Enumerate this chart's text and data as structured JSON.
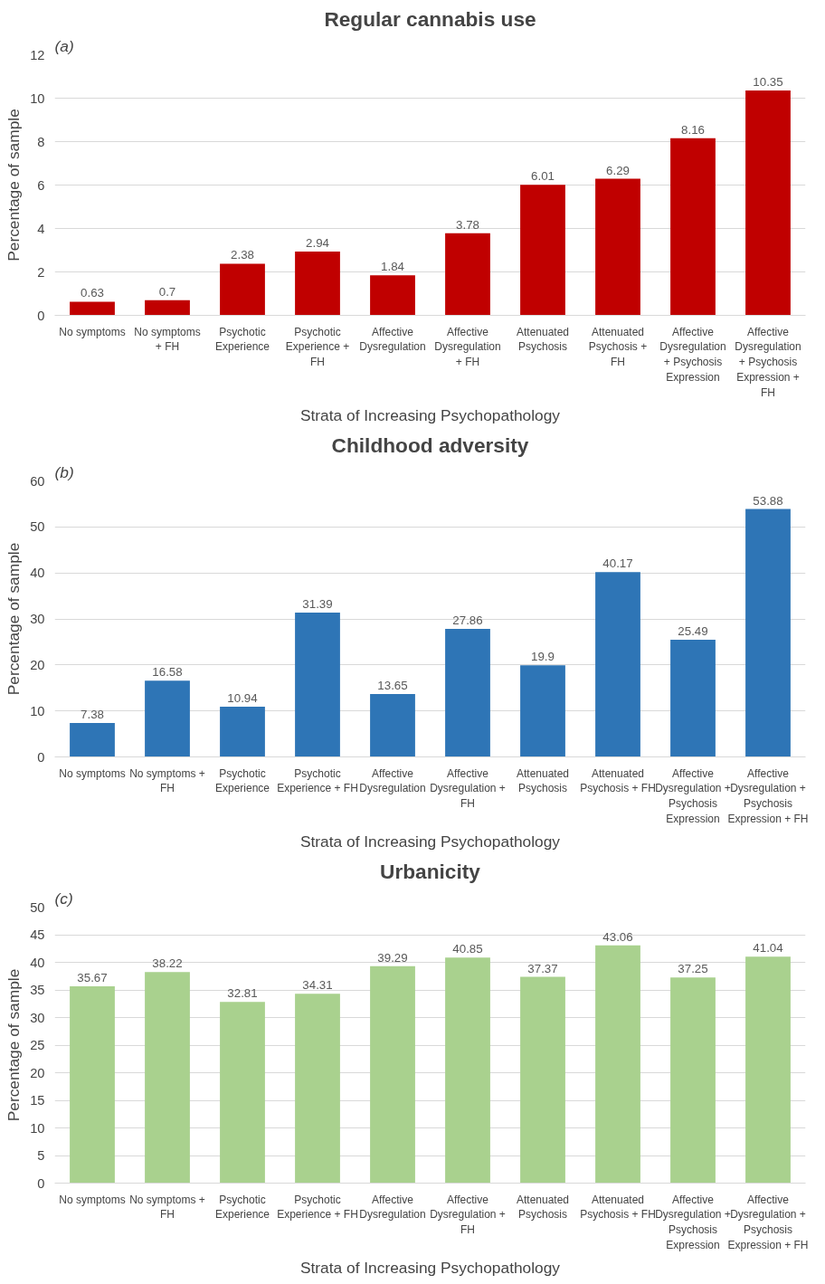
{
  "chart_data": [
    {
      "type": "bar",
      "title": "Regular cannabis use",
      "xlabel": "Strata of Increasing Psychopathology",
      "ylabel": "Percentage of sample",
      "annotations": [
        "(a)"
      ],
      "categories": [
        "No symptoms",
        "No symptoms\n+ FH",
        "Psychotic\nExperience",
        "Psychotic\nExperience +\nFH",
        "Affective\nDysregulation",
        "Affective\nDysregulation\n+ FH",
        "Attenuated\nPsychosis",
        "Attenuated\nPsychosis +\nFH",
        "Affective\nDysregulation\n+ Psychosis\nExpression",
        "Affective\nDysregulation\n+ Psychosis\nExpression +\nFH"
      ],
      "values": [
        0.63,
        0.7,
        2.38,
        2.94,
        1.84,
        3.78,
        6.01,
        6.29,
        8.16,
        10.35
      ],
      "color": "#c00000",
      "ylim": [
        0,
        12
      ],
      "yticks": [
        0,
        2,
        4,
        6,
        8,
        10,
        12
      ],
      "grid": "y",
      "data_labels": true
    },
    {
      "type": "bar",
      "title": "Childhood adversity",
      "xlabel": "Strata of Increasing Psychopathology",
      "ylabel": "Percentage of sample",
      "annotations": [
        "(b)"
      ],
      "categories": [
        "No symptoms",
        "No symptoms +\nFH",
        "Psychotic\nExperience",
        "Psychotic\nExperience + FH",
        "Affective\nDysregulation",
        "Affective\nDysregulation +\nFH",
        "Attenuated\nPsychosis",
        "Attenuated\nPsychosis + FH",
        "Affective\nDysregulation +\nPsychosis\nExpression",
        "Affective\nDysregulation +\nPsychosis\nExpression + FH"
      ],
      "values": [
        7.38,
        16.58,
        10.94,
        31.39,
        13.65,
        27.86,
        19.9,
        40.17,
        25.49,
        53.88
      ],
      "color": "#2e75b6",
      "ylim": [
        0,
        60
      ],
      "yticks": [
        0,
        10,
        20,
        30,
        40,
        50,
        60
      ],
      "grid": "y",
      "data_labels": true
    },
    {
      "type": "bar",
      "title": "Urbanicity",
      "xlabel": "Strata of Increasing Psychopathology",
      "ylabel": "Percentage of sample",
      "annotations": [
        "(c)"
      ],
      "categories": [
        "No symptoms",
        "No symptoms +\nFH",
        "Psychotic\nExperience",
        "Psychotic\nExperience + FH",
        "Affective\nDysregulation",
        "Affective\nDysregulation +\nFH",
        "Attenuated\nPsychosis",
        "Attenuated\nPsychosis + FH",
        "Affective\nDysregulation +\nPsychosis\nExpression",
        "Affective\nDysregulation +\nPsychosis\nExpression + FH"
      ],
      "values": [
        35.67,
        38.22,
        32.81,
        34.31,
        39.29,
        40.85,
        37.37,
        43.06,
        37.25,
        41.04
      ],
      "color": "#a9d18e",
      "ylim": [
        0,
        50
      ],
      "yticks": [
        0,
        5,
        10,
        15,
        20,
        25,
        30,
        35,
        40,
        45,
        50
      ],
      "grid": "y",
      "data_labels": true
    }
  ]
}
